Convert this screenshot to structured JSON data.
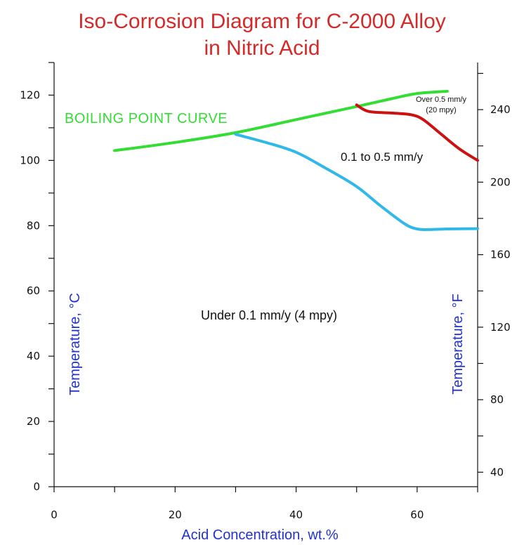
{
  "chart_data": {
    "type": "line",
    "title_lines": [
      "Iso-Corrosion Diagram for C-2000 Alloy",
      "in Nitric Acid"
    ],
    "xlabel": "Acid Concentration, wt.%",
    "ylabel_left": "Temperature, °C",
    "ylabel_right": "Temperature, °F",
    "xlim": [
      0,
      70
    ],
    "ylim": [
      0,
      130
    ],
    "x_ticks": [
      0,
      20,
      40,
      60
    ],
    "y_ticks_left": [
      0,
      20,
      40,
      60,
      80,
      100,
      120
    ],
    "y_ticks_right_f": [
      40,
      80,
      120,
      160,
      200,
      240
    ],
    "grid": false,
    "series": [
      {
        "name": "BOILING POINT CURVE",
        "color": "#33dd33",
        "points": [
          [
            10,
            103
          ],
          [
            20,
            105.5
          ],
          [
            30,
            108.5
          ],
          [
            40,
            112.5
          ],
          [
            50,
            116.5
          ],
          [
            56,
            119
          ],
          [
            60,
            120.5
          ],
          [
            65,
            121.2
          ]
        ]
      },
      {
        "name": "",
        "color": "#30b8e8",
        "points": [
          [
            30,
            108
          ],
          [
            35,
            105.5
          ],
          [
            40,
            102.5
          ],
          [
            45,
            97.5
          ],
          [
            50,
            92
          ],
          [
            54,
            86
          ],
          [
            58,
            80.5
          ],
          [
            60,
            79
          ],
          [
            62,
            78.8
          ],
          [
            65,
            79
          ],
          [
            70,
            79.1
          ]
        ]
      },
      {
        "name": "",
        "color": "#cc1111",
        "points": [
          [
            50,
            117
          ],
          [
            52,
            115
          ],
          [
            56,
            114.5
          ],
          [
            59,
            114
          ],
          [
            61,
            112.5
          ],
          [
            64,
            108
          ],
          [
            67,
            103.5
          ],
          [
            70,
            100
          ]
        ]
      }
    ],
    "annotations": {
      "boiling_point": "BOILING POINT CURVE",
      "mid_zone": "0.1 to 0.5 mm/y",
      "low_zone": "Under 0.1 mm/y (4 mpy)",
      "high_zone_line1": "Over 0.5 mm/y",
      "high_zone_line2": "(20 mpy)"
    }
  }
}
